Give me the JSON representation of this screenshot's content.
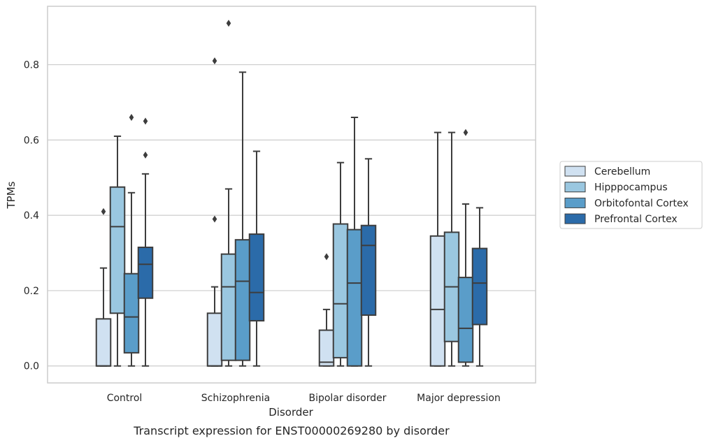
{
  "chart_data": {
    "type": "box",
    "caption": "Transcript expression for ENST00000269280 by disorder",
    "xlabel": "Disorder",
    "ylabel": "TPMs",
    "ylim": [
      -0.045,
      0.955
    ],
    "yticks": [
      0.0,
      0.2,
      0.4,
      0.6,
      0.8
    ],
    "ytick_labels": [
      "0.0",
      "0.2",
      "0.4",
      "0.6",
      "0.8"
    ],
    "grid": "horizontal",
    "legend_position": "right",
    "categories": [
      "Control",
      "Schizophrenia",
      "Bipolar disorder",
      "Major depression"
    ],
    "series": [
      {
        "name": "Cerebellum",
        "color": "#d0e1f1",
        "boxes": [
          {
            "whislo": 0.0,
            "q1": 0.0,
            "med": 0.0,
            "q3": 0.125,
            "whishi": 0.26,
            "fliers": [
              0.41
            ]
          },
          {
            "whislo": 0.0,
            "q1": 0.0,
            "med": 0.0,
            "q3": 0.14,
            "whishi": 0.21,
            "fliers": [
              0.39,
              0.81
            ]
          },
          {
            "whislo": 0.0,
            "q1": 0.0,
            "med": 0.01,
            "q3": 0.095,
            "whishi": 0.15,
            "fliers": [
              0.29
            ]
          },
          {
            "whislo": 0.0,
            "q1": 0.0,
            "med": 0.15,
            "q3": 0.345,
            "whishi": 0.62,
            "fliers": []
          }
        ]
      },
      {
        "name": "Hipppocampus",
        "color": "#9ac7e0",
        "boxes": [
          {
            "whislo": 0.0,
            "q1": 0.14,
            "med": 0.37,
            "q3": 0.475,
            "whishi": 0.61,
            "fliers": []
          },
          {
            "whislo": 0.0,
            "q1": 0.015,
            "med": 0.21,
            "q3": 0.297,
            "whishi": 0.47,
            "fliers": [
              0.91
            ]
          },
          {
            "whislo": 0.0,
            "q1": 0.022,
            "med": 0.165,
            "q3": 0.377,
            "whishi": 0.54,
            "fliers": []
          },
          {
            "whislo": 0.0,
            "q1": 0.065,
            "med": 0.21,
            "q3": 0.355,
            "whishi": 0.62,
            "fliers": []
          }
        ]
      },
      {
        "name": "Orbitofontal Cortex",
        "color": "#5a9dc9",
        "boxes": [
          {
            "whislo": 0.0,
            "q1": 0.035,
            "med": 0.13,
            "q3": 0.245,
            "whishi": 0.46,
            "fliers": [
              0.66
            ]
          },
          {
            "whislo": 0.0,
            "q1": 0.015,
            "med": 0.225,
            "q3": 0.335,
            "whishi": 0.78,
            "fliers": []
          },
          {
            "whislo": 0.0,
            "q1": 0.0,
            "med": 0.22,
            "q3": 0.362,
            "whishi": 0.66,
            "fliers": []
          },
          {
            "whislo": 0.0,
            "q1": 0.01,
            "med": 0.1,
            "q3": 0.235,
            "whishi": 0.43,
            "fliers": [
              0.62
            ]
          }
        ]
      },
      {
        "name": "Prefrontal Cortex",
        "color": "#2b6ba9",
        "boxes": [
          {
            "whislo": 0.0,
            "q1": 0.18,
            "med": 0.27,
            "q3": 0.315,
            "whishi": 0.51,
            "fliers": [
              0.56,
              0.65
            ]
          },
          {
            "whislo": 0.0,
            "q1": 0.12,
            "med": 0.195,
            "q3": 0.35,
            "whishi": 0.57,
            "fliers": []
          },
          {
            "whislo": 0.0,
            "q1": 0.135,
            "med": 0.32,
            "q3": 0.373,
            "whishi": 0.55,
            "fliers": []
          },
          {
            "whislo": 0.0,
            "q1": 0.11,
            "med": 0.22,
            "q3": 0.312,
            "whishi": 0.42,
            "fliers": []
          }
        ]
      }
    ]
  }
}
